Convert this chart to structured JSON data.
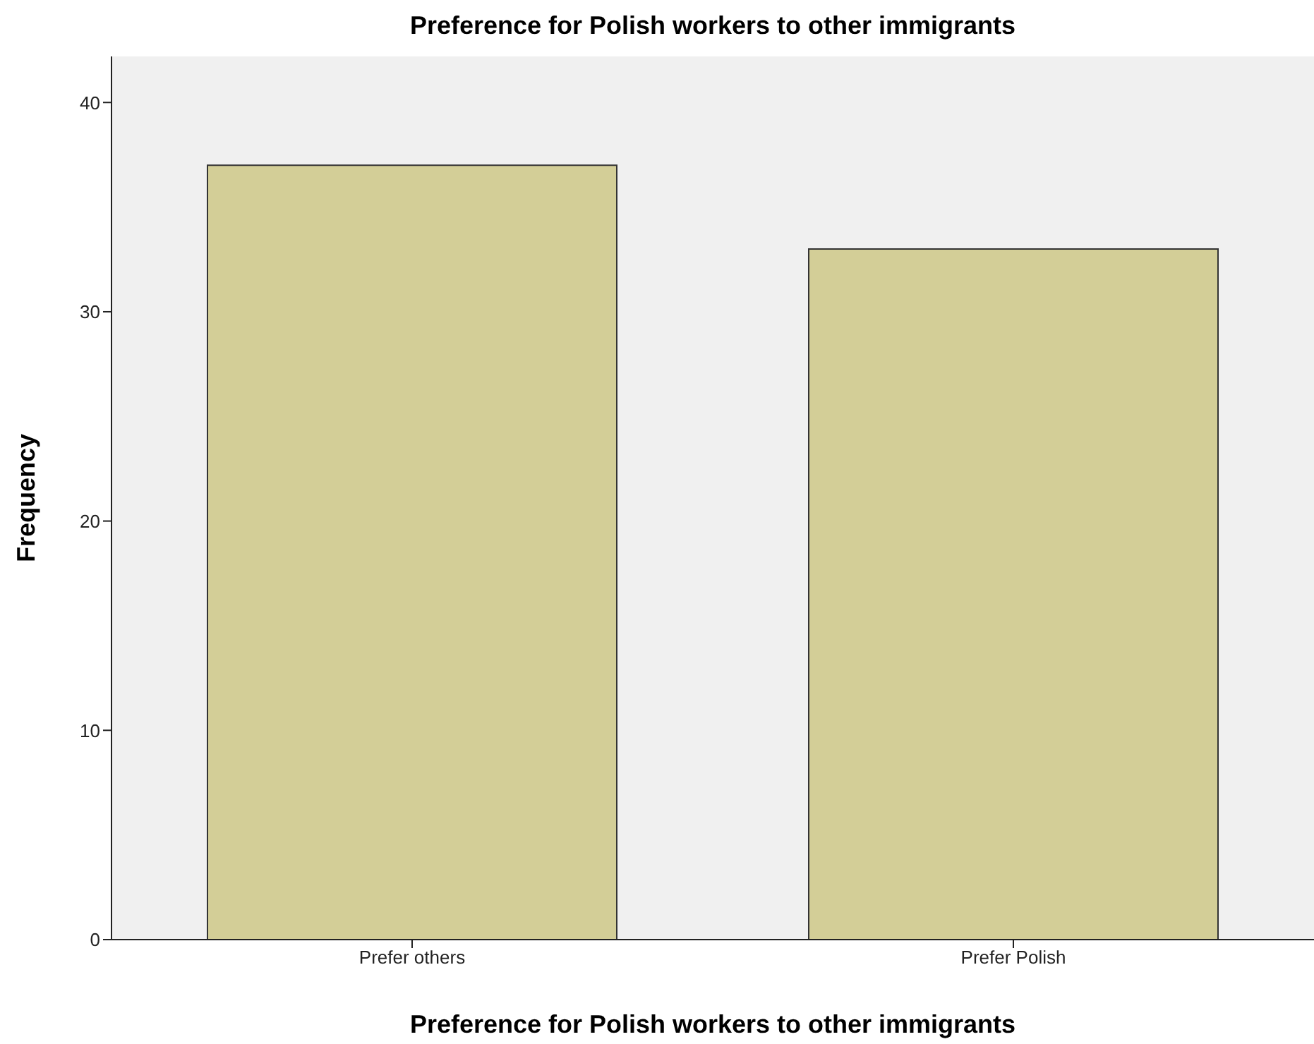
{
  "chart_data": {
    "type": "bar",
    "title": "Preference for Polish workers to other immigrants",
    "xlabel": "Preference for Polish workers to other immigrants",
    "ylabel": "Frequency",
    "categories": [
      "Prefer others",
      "Prefer Polish"
    ],
    "values": [
      37,
      33
    ],
    "color": "#d3ce97",
    "ylim": [
      0,
      42.2
    ],
    "yticks": [
      0,
      10,
      20,
      30,
      40
    ],
    "grid": false,
    "legend": false
  }
}
